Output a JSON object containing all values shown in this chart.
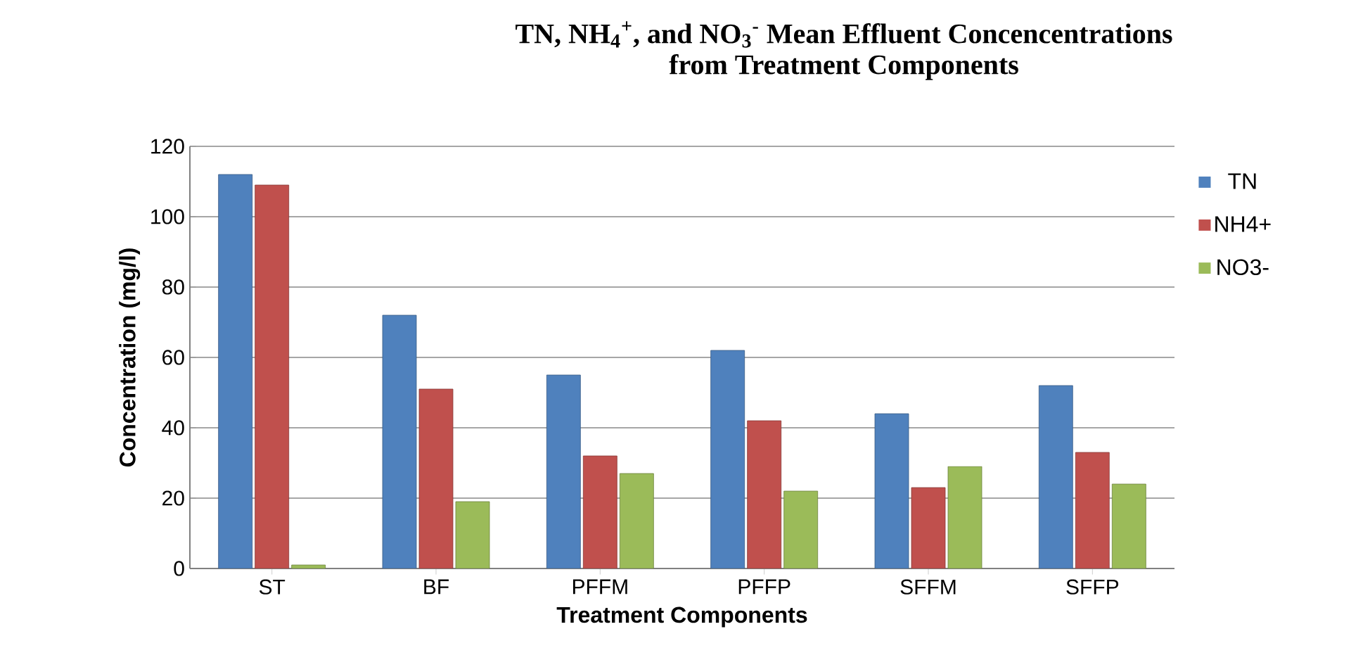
{
  "chart_data": {
    "type": "bar",
    "title": "TN, NH$_{4}$$^{+}$, and NO$_{3}$$^{-}$ Mean Effluent Concencentrations",
    "subtitle": "from Treatment Components",
    "xlabel": "Treatment Components",
    "ylabel": "Concentration (mg/l)",
    "categories": [
      "ST",
      "BF",
      "PFFM",
      "PFFP",
      "SFFM",
      "SFFP"
    ],
    "series": [
      {
        "name": "TN",
        "color": "#4f81bd",
        "values": [
          112,
          72,
          55,
          62,
          44,
          52
        ]
      },
      {
        "name": "NH4+",
        "color": "#c0504d",
        "values": [
          109,
          51,
          32,
          42,
          23,
          33
        ]
      },
      {
        "name": "NO3-",
        "color": "#9bbb59",
        "values": [
          1,
          19,
          27,
          22,
          29,
          24
        ]
      }
    ],
    "ylim": [
      0,
      120
    ],
    "yticks": [
      0,
      20,
      40,
      60,
      80,
      100,
      120
    ],
    "grid": "y",
    "legend": "right"
  }
}
